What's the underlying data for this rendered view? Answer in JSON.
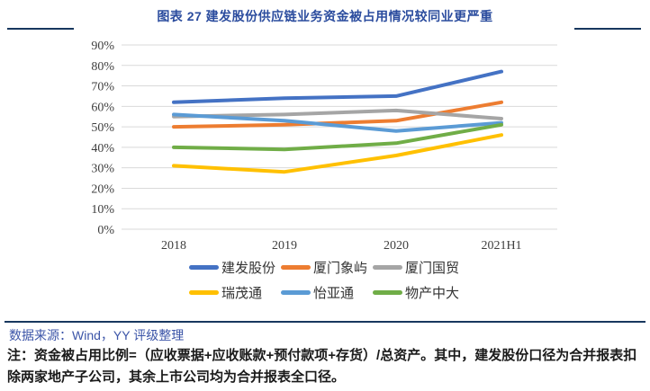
{
  "header": {
    "title": "图表 27 建发股份供应链业务资金被占用情况较同业更严重"
  },
  "footer": {
    "source": "数据来源：Wind，YY 评级整理",
    "note": "注：资金被占用比例=（应收票据+应收账款+预付款项+存货）/总资产。其中，建发股份口径为合并报表扣除两家地产子公司，其余上市公司均为合并报表全口径。"
  },
  "colors": {
    "title_text": "#2B4C9E",
    "accent_rule": "#17375E",
    "source_text": "#3C55A8",
    "note_text": "#1A1A1A",
    "grid_line": "#D9D9D9",
    "axis_text": "#3F3F3F"
  },
  "chart_data": {
    "type": "line",
    "title": "图表 27 建发股份供应链业务资金被占用情况较同业更严重",
    "categories": [
      "2018",
      "2019",
      "2020",
      "2021H1"
    ],
    "series": [
      {
        "name": "建发股份",
        "color": "#4472C4",
        "values": [
          62,
          64,
          65,
          77
        ]
      },
      {
        "name": "厦门象屿",
        "color": "#ED7D31",
        "values": [
          50,
          51,
          53,
          62
        ]
      },
      {
        "name": "厦门国贸",
        "color": "#A5A5A5",
        "values": [
          55,
          56,
          58,
          54
        ]
      },
      {
        "name": "瑞茂通",
        "color": "#FFC000",
        "values": [
          31,
          28,
          36,
          46
        ]
      },
      {
        "name": "怡亚通",
        "color": "#5B9BD5",
        "values": [
          56,
          53,
          48,
          52
        ]
      },
      {
        "name": "物产中大",
        "color": "#70AD47",
        "values": [
          40,
          39,
          42,
          51
        ]
      }
    ],
    "ylim": [
      0,
      90
    ],
    "ytick_step": 10,
    "ytick_suffix": "%",
    "grid": true,
    "legend_position": "bottom",
    "legend_rows": [
      [
        "建发股份",
        "厦门象屿",
        "厦门国贸"
      ],
      [
        "瑞茂通",
        "怡亚通",
        "物产中大"
      ]
    ]
  }
}
